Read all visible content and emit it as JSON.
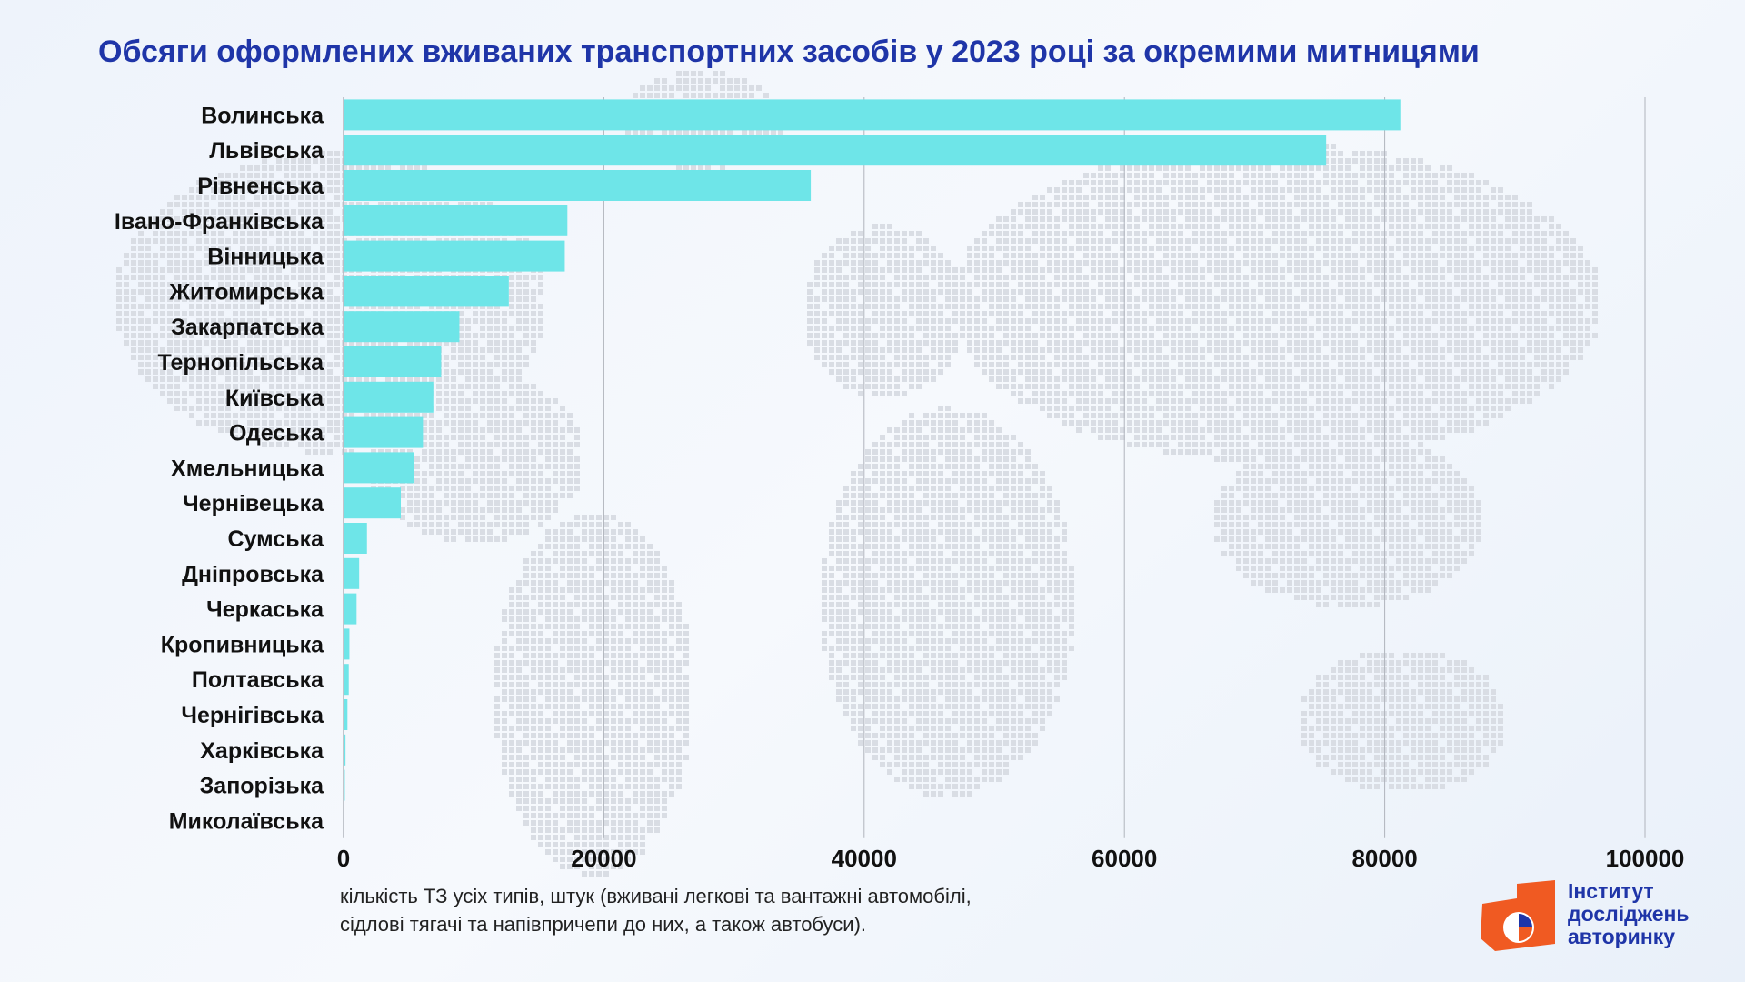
{
  "title": "Обсяги оформлених вживаних транспортних засобів у 2023 році за окремими митницями",
  "xlabel_lines": [
    "кількість ТЗ усіх типів, штук (вживані легкові та вантажні автомобілі,",
    "сідлові тягачі та напівпричепи до них, а також автобуси)."
  ],
  "logo": {
    "lines": [
      "Інститут",
      "досліджень",
      "авторинку"
    ],
    "brand_color": "#1f35a8",
    "accent_color": "#f05a22"
  },
  "colors": {
    "bar": "#6ee5e8",
    "title": "#1f35a8",
    "grid": "#b0b4bc",
    "map_dots": "#d9dde4"
  },
  "chart_data": {
    "type": "bar",
    "orientation": "horizontal",
    "title": "Обсяги оформлених вживаних транспортних засобів у 2023 році за окремими митницями",
    "xlabel": "кількість ТЗ усіх типів, штук (вживані легкові та вантажні автомобілі, сідлові тягачі та напівпричепи до них, а також автобуси).",
    "ylabel": "",
    "categories": [
      "Волинська",
      "Львівська",
      "Рівненська",
      "Івано-Франківська",
      "Вінницька",
      "Житомирська",
      "Закарпатська",
      "Тернопільська",
      "Київська",
      "Одеська",
      "Хмельницька",
      "Чернівецька",
      "Сумська",
      "Дніпровська",
      "Черкаська",
      "Кропивницька",
      "Полтавська",
      "Чернігівська",
      "Харківська",
      "Запорізька",
      "Миколаївська"
    ],
    "values": [
      81200,
      75500,
      35900,
      17200,
      17000,
      12700,
      8900,
      7500,
      6900,
      6100,
      5400,
      4400,
      1800,
      1200,
      1000,
      450,
      400,
      300,
      150,
      100,
      50
    ],
    "xlim": [
      0,
      100000
    ],
    "xticks": [
      0,
      20000,
      40000,
      60000,
      80000,
      100000
    ],
    "grid": "vertical",
    "legend": "none"
  }
}
